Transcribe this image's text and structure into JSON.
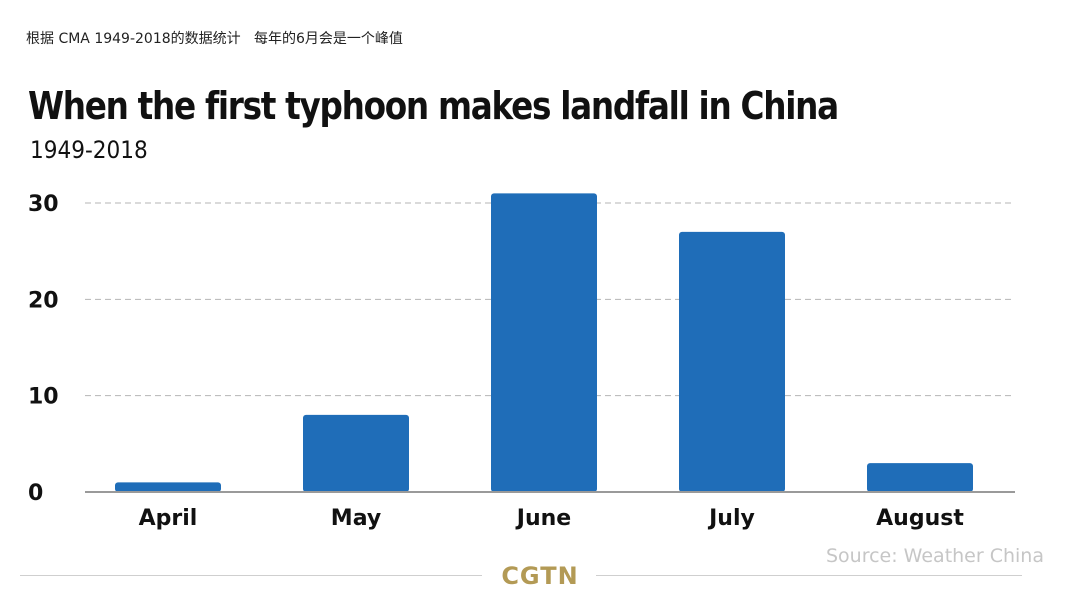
{
  "caption": "根据 CMA 1949-2018的数据统计   每年的6月会是一个峰值",
  "source": "Source: Weather China",
  "logo": "CGTN",
  "colors": {
    "bar": "#1f6db8",
    "grid": "#b5b5b5",
    "axis": "#9a9a9a",
    "logo": "#b39a55"
  },
  "chart_data": {
    "type": "bar",
    "title": "When the first typhoon makes landfall in China",
    "subtitle": "1949-2018",
    "categories": [
      "April",
      "May",
      "June",
      "July",
      "August"
    ],
    "values": [
      1,
      8,
      31,
      27,
      3
    ],
    "yticks": [
      0,
      10,
      20,
      30
    ],
    "ylim": [
      0,
      30
    ],
    "grid": true,
    "xlabel": "",
    "ylabel": ""
  }
}
